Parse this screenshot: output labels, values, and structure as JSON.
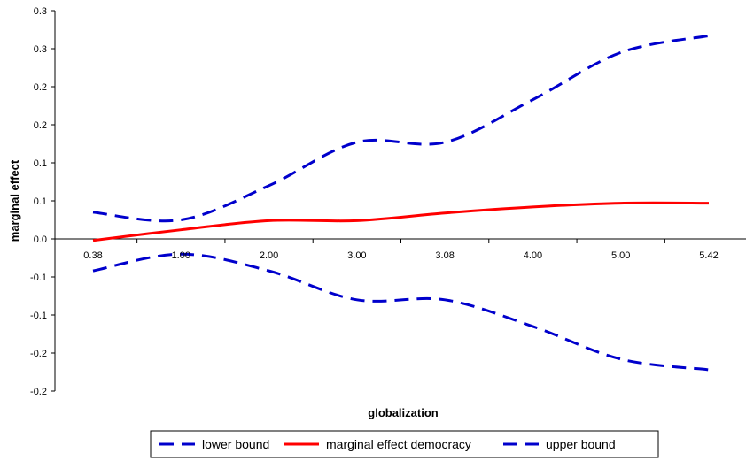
{
  "chart_data": {
    "type": "line",
    "title": "",
    "xlabel": "globalization",
    "ylabel": "marginal effect",
    "categories": [
      "0.38",
      "1.00",
      "2.00",
      "3.00",
      "3.08",
      "4.00",
      "5.00",
      "5.42"
    ],
    "ylim": [
      -0.2,
      0.3
    ],
    "y_ticks": [
      0.3,
      0.25,
      0.2,
      0.15,
      0.1,
      0.05,
      0.0,
      -0.05,
      -0.1,
      -0.15,
      -0.2
    ],
    "y_tick_labels": [
      "0.3",
      "0.3",
      "0.2",
      "0.2",
      "0.1",
      "0.1",
      "0.0",
      "-0.1",
      "-0.1",
      "-0.2",
      "-0.2"
    ],
    "grid": false,
    "legend_position": "bottom",
    "series": [
      {
        "name": "lower bound",
        "color": "#0000CC",
        "style": "dashed",
        "values": [
          -0.042,
          -0.02,
          -0.042,
          -0.08,
          -0.08,
          -0.115,
          -0.158,
          -0.172
        ]
      },
      {
        "name": "marginal effect democracy",
        "color": "#FF0000",
        "style": "solid",
        "values": [
          -0.002,
          0.012,
          0.024,
          0.024,
          0.034,
          0.042,
          0.047,
          0.047
        ]
      },
      {
        "name": "upper bound",
        "color": "#0000CC",
        "style": "dashed",
        "values": [
          0.035,
          0.025,
          0.07,
          0.127,
          0.127,
          0.183,
          0.245,
          0.267
        ]
      }
    ]
  }
}
